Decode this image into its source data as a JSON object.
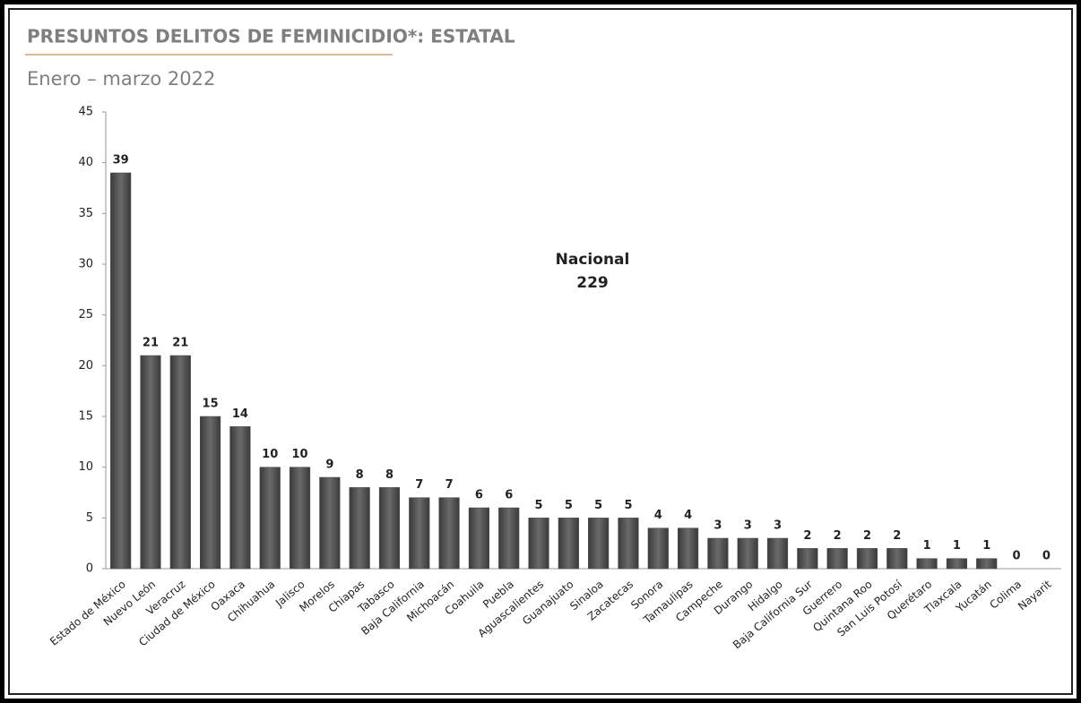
{
  "chart_data": {
    "type": "bar",
    "title": "PRESUNTOS DELITOS DE FEMINICIDIO*: ESTATAL",
    "subtitle": "Enero – marzo 2022",
    "annotation": [
      "Nacional",
      "229"
    ],
    "categories": [
      "Estado de México",
      "Nuevo León",
      "Veracruz",
      "Ciudad de México",
      "Oaxaca",
      "Chihuahua",
      "Jalisco",
      "Morelos",
      "Chiapas",
      "Tabasco",
      "Baja California",
      "Michoacán",
      "Coahuila",
      "Puebla",
      "Aguascalientes",
      "Guanajuato",
      "Sinaloa",
      "Zacatecas",
      "Sonora",
      "Tamaulipas",
      "Campeche",
      "Durango",
      "Hidalgo",
      "Baja California Sur",
      "Guerrero",
      "Quintana Roo",
      "San Luis Potosí",
      "Querétaro",
      "Tlaxcala",
      "Yucatán",
      "Colima",
      "Nayarit"
    ],
    "values": [
      39,
      21,
      21,
      15,
      14,
      10,
      10,
      9,
      8,
      8,
      7,
      7,
      6,
      6,
      5,
      5,
      5,
      5,
      4,
      4,
      3,
      3,
      3,
      2,
      2,
      2,
      2,
      1,
      1,
      1,
      0,
      0
    ],
    "color": "#4d4d4d",
    "ylim": [
      0,
      45
    ],
    "yticks": [
      0,
      5,
      10,
      15,
      20,
      25,
      30,
      35,
      40,
      45
    ],
    "grid": false
  }
}
